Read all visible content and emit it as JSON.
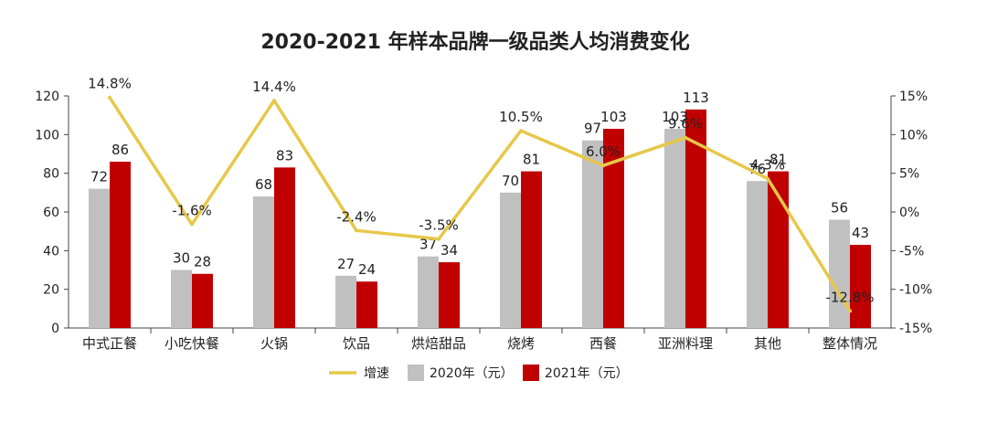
{
  "chart_data": {
    "type": "bar",
    "title": "2020-2021 年样本品牌一级品类人均消费变化",
    "categories": [
      "中式正餐",
      "小吃快餐",
      "火锅",
      "饮品",
      "烘焙甜品",
      "烧烤",
      "西餐",
      "亚洲料理",
      "其他",
      "整体情况"
    ],
    "series": [
      {
        "name": "2020年（元）",
        "type": "bar",
        "color": "#c0c0c0",
        "values": [
          72,
          30,
          68,
          27,
          37,
          70,
          97,
          103,
          76,
          56
        ]
      },
      {
        "name": "2021年（元）",
        "type": "bar",
        "color": "#c00000",
        "values": [
          86,
          28,
          83,
          24,
          34,
          81,
          103,
          113,
          81,
          43
        ]
      },
      {
        "name": "增速",
        "type": "line",
        "axis": "right",
        "color": "#e6c84a",
        "values": [
          14.8,
          -1.6,
          14.4,
          -2.4,
          -3.5,
          10.5,
          6.0,
          9.6,
          4.3,
          -12.8
        ]
      }
    ],
    "ylim_left": [
      0,
      120
    ],
    "yticks_left": [
      "0",
      "20",
      "40",
      "60",
      "80",
      "100",
      "120"
    ],
    "ylim_right": [
      -15,
      15
    ],
    "yticks_right": [
      "-15%",
      "-10%",
      "-5%",
      "0%",
      "5%",
      "10%",
      "15%"
    ],
    "pct_labels": [
      "14.8%",
      "-1.6%",
      "14.4%",
      "-2.4%",
      "-3.5%",
      "10.5%",
      "6.0%",
      "9.6%",
      "4.3%",
      "-12.8%"
    ],
    "legend": [
      "增速",
      "2020年（元）",
      "2021年（元）"
    ],
    "legend_position": "bottom"
  }
}
